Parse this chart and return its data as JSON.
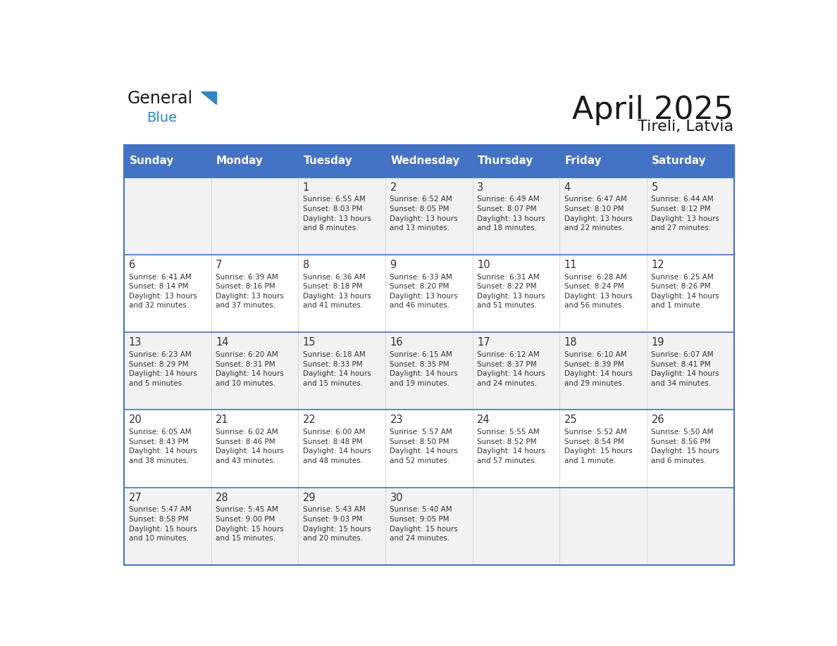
{
  "title": "April 2025",
  "subtitle": "Tireli, Latvia",
  "header_bg_color": "#4472C4",
  "header_text_color": "#FFFFFF",
  "weekdays": [
    "Sunday",
    "Monday",
    "Tuesday",
    "Wednesday",
    "Thursday",
    "Friday",
    "Saturday"
  ],
  "alt_row_color": "#F2F2F2",
  "white_row_color": "#FFFFFF",
  "border_color": "#4472C4",
  "text_color": "#333333",
  "days": [
    {
      "day": null,
      "col": 0,
      "row": 0,
      "info": null
    },
    {
      "day": null,
      "col": 1,
      "row": 0,
      "info": null
    },
    {
      "day": 1,
      "col": 2,
      "row": 0,
      "info": "Sunrise: 6:55 AM\nSunset: 8:03 PM\nDaylight: 13 hours\nand 8 minutes."
    },
    {
      "day": 2,
      "col": 3,
      "row": 0,
      "info": "Sunrise: 6:52 AM\nSunset: 8:05 PM\nDaylight: 13 hours\nand 13 minutes."
    },
    {
      "day": 3,
      "col": 4,
      "row": 0,
      "info": "Sunrise: 6:49 AM\nSunset: 8:07 PM\nDaylight: 13 hours\nand 18 minutes."
    },
    {
      "day": 4,
      "col": 5,
      "row": 0,
      "info": "Sunrise: 6:47 AM\nSunset: 8:10 PM\nDaylight: 13 hours\nand 22 minutes."
    },
    {
      "day": 5,
      "col": 6,
      "row": 0,
      "info": "Sunrise: 6:44 AM\nSunset: 8:12 PM\nDaylight: 13 hours\nand 27 minutes."
    },
    {
      "day": 6,
      "col": 0,
      "row": 1,
      "info": "Sunrise: 6:41 AM\nSunset: 8:14 PM\nDaylight: 13 hours\nand 32 minutes."
    },
    {
      "day": 7,
      "col": 1,
      "row": 1,
      "info": "Sunrise: 6:39 AM\nSunset: 8:16 PM\nDaylight: 13 hours\nand 37 minutes."
    },
    {
      "day": 8,
      "col": 2,
      "row": 1,
      "info": "Sunrise: 6:36 AM\nSunset: 8:18 PM\nDaylight: 13 hours\nand 41 minutes."
    },
    {
      "day": 9,
      "col": 3,
      "row": 1,
      "info": "Sunrise: 6:33 AM\nSunset: 8:20 PM\nDaylight: 13 hours\nand 46 minutes."
    },
    {
      "day": 10,
      "col": 4,
      "row": 1,
      "info": "Sunrise: 6:31 AM\nSunset: 8:22 PM\nDaylight: 13 hours\nand 51 minutes."
    },
    {
      "day": 11,
      "col": 5,
      "row": 1,
      "info": "Sunrise: 6:28 AM\nSunset: 8:24 PM\nDaylight: 13 hours\nand 56 minutes."
    },
    {
      "day": 12,
      "col": 6,
      "row": 1,
      "info": "Sunrise: 6:25 AM\nSunset: 8:26 PM\nDaylight: 14 hours\nand 1 minute."
    },
    {
      "day": 13,
      "col": 0,
      "row": 2,
      "info": "Sunrise: 6:23 AM\nSunset: 8:29 PM\nDaylight: 14 hours\nand 5 minutes."
    },
    {
      "day": 14,
      "col": 1,
      "row": 2,
      "info": "Sunrise: 6:20 AM\nSunset: 8:31 PM\nDaylight: 14 hours\nand 10 minutes."
    },
    {
      "day": 15,
      "col": 2,
      "row": 2,
      "info": "Sunrise: 6:18 AM\nSunset: 8:33 PM\nDaylight: 14 hours\nand 15 minutes."
    },
    {
      "day": 16,
      "col": 3,
      "row": 2,
      "info": "Sunrise: 6:15 AM\nSunset: 8:35 PM\nDaylight: 14 hours\nand 19 minutes."
    },
    {
      "day": 17,
      "col": 4,
      "row": 2,
      "info": "Sunrise: 6:12 AM\nSunset: 8:37 PM\nDaylight: 14 hours\nand 24 minutes."
    },
    {
      "day": 18,
      "col": 5,
      "row": 2,
      "info": "Sunrise: 6:10 AM\nSunset: 8:39 PM\nDaylight: 14 hours\nand 29 minutes."
    },
    {
      "day": 19,
      "col": 6,
      "row": 2,
      "info": "Sunrise: 6:07 AM\nSunset: 8:41 PM\nDaylight: 14 hours\nand 34 minutes."
    },
    {
      "day": 20,
      "col": 0,
      "row": 3,
      "info": "Sunrise: 6:05 AM\nSunset: 8:43 PM\nDaylight: 14 hours\nand 38 minutes."
    },
    {
      "day": 21,
      "col": 1,
      "row": 3,
      "info": "Sunrise: 6:02 AM\nSunset: 8:46 PM\nDaylight: 14 hours\nand 43 minutes."
    },
    {
      "day": 22,
      "col": 2,
      "row": 3,
      "info": "Sunrise: 6:00 AM\nSunset: 8:48 PM\nDaylight: 14 hours\nand 48 minutes."
    },
    {
      "day": 23,
      "col": 3,
      "row": 3,
      "info": "Sunrise: 5:57 AM\nSunset: 8:50 PM\nDaylight: 14 hours\nand 52 minutes."
    },
    {
      "day": 24,
      "col": 4,
      "row": 3,
      "info": "Sunrise: 5:55 AM\nSunset: 8:52 PM\nDaylight: 14 hours\nand 57 minutes."
    },
    {
      "day": 25,
      "col": 5,
      "row": 3,
      "info": "Sunrise: 5:52 AM\nSunset: 8:54 PM\nDaylight: 15 hours\nand 1 minute."
    },
    {
      "day": 26,
      "col": 6,
      "row": 3,
      "info": "Sunrise: 5:50 AM\nSunset: 8:56 PM\nDaylight: 15 hours\nand 6 minutes."
    },
    {
      "day": 27,
      "col": 0,
      "row": 4,
      "info": "Sunrise: 5:47 AM\nSunset: 8:58 PM\nDaylight: 15 hours\nand 10 minutes."
    },
    {
      "day": 28,
      "col": 1,
      "row": 4,
      "info": "Sunrise: 5:45 AM\nSunset: 9:00 PM\nDaylight: 15 hours\nand 15 minutes."
    },
    {
      "day": 29,
      "col": 2,
      "row": 4,
      "info": "Sunrise: 5:43 AM\nSunset: 9:03 PM\nDaylight: 15 hours\nand 20 minutes."
    },
    {
      "day": 30,
      "col": 3,
      "row": 4,
      "info": "Sunrise: 5:40 AM\nSunset: 9:05 PM\nDaylight: 15 hours\nand 24 minutes."
    },
    {
      "day": null,
      "col": 4,
      "row": 4,
      "info": null
    },
    {
      "day": null,
      "col": 5,
      "row": 4,
      "info": null
    },
    {
      "day": null,
      "col": 6,
      "row": 4,
      "info": null
    }
  ]
}
